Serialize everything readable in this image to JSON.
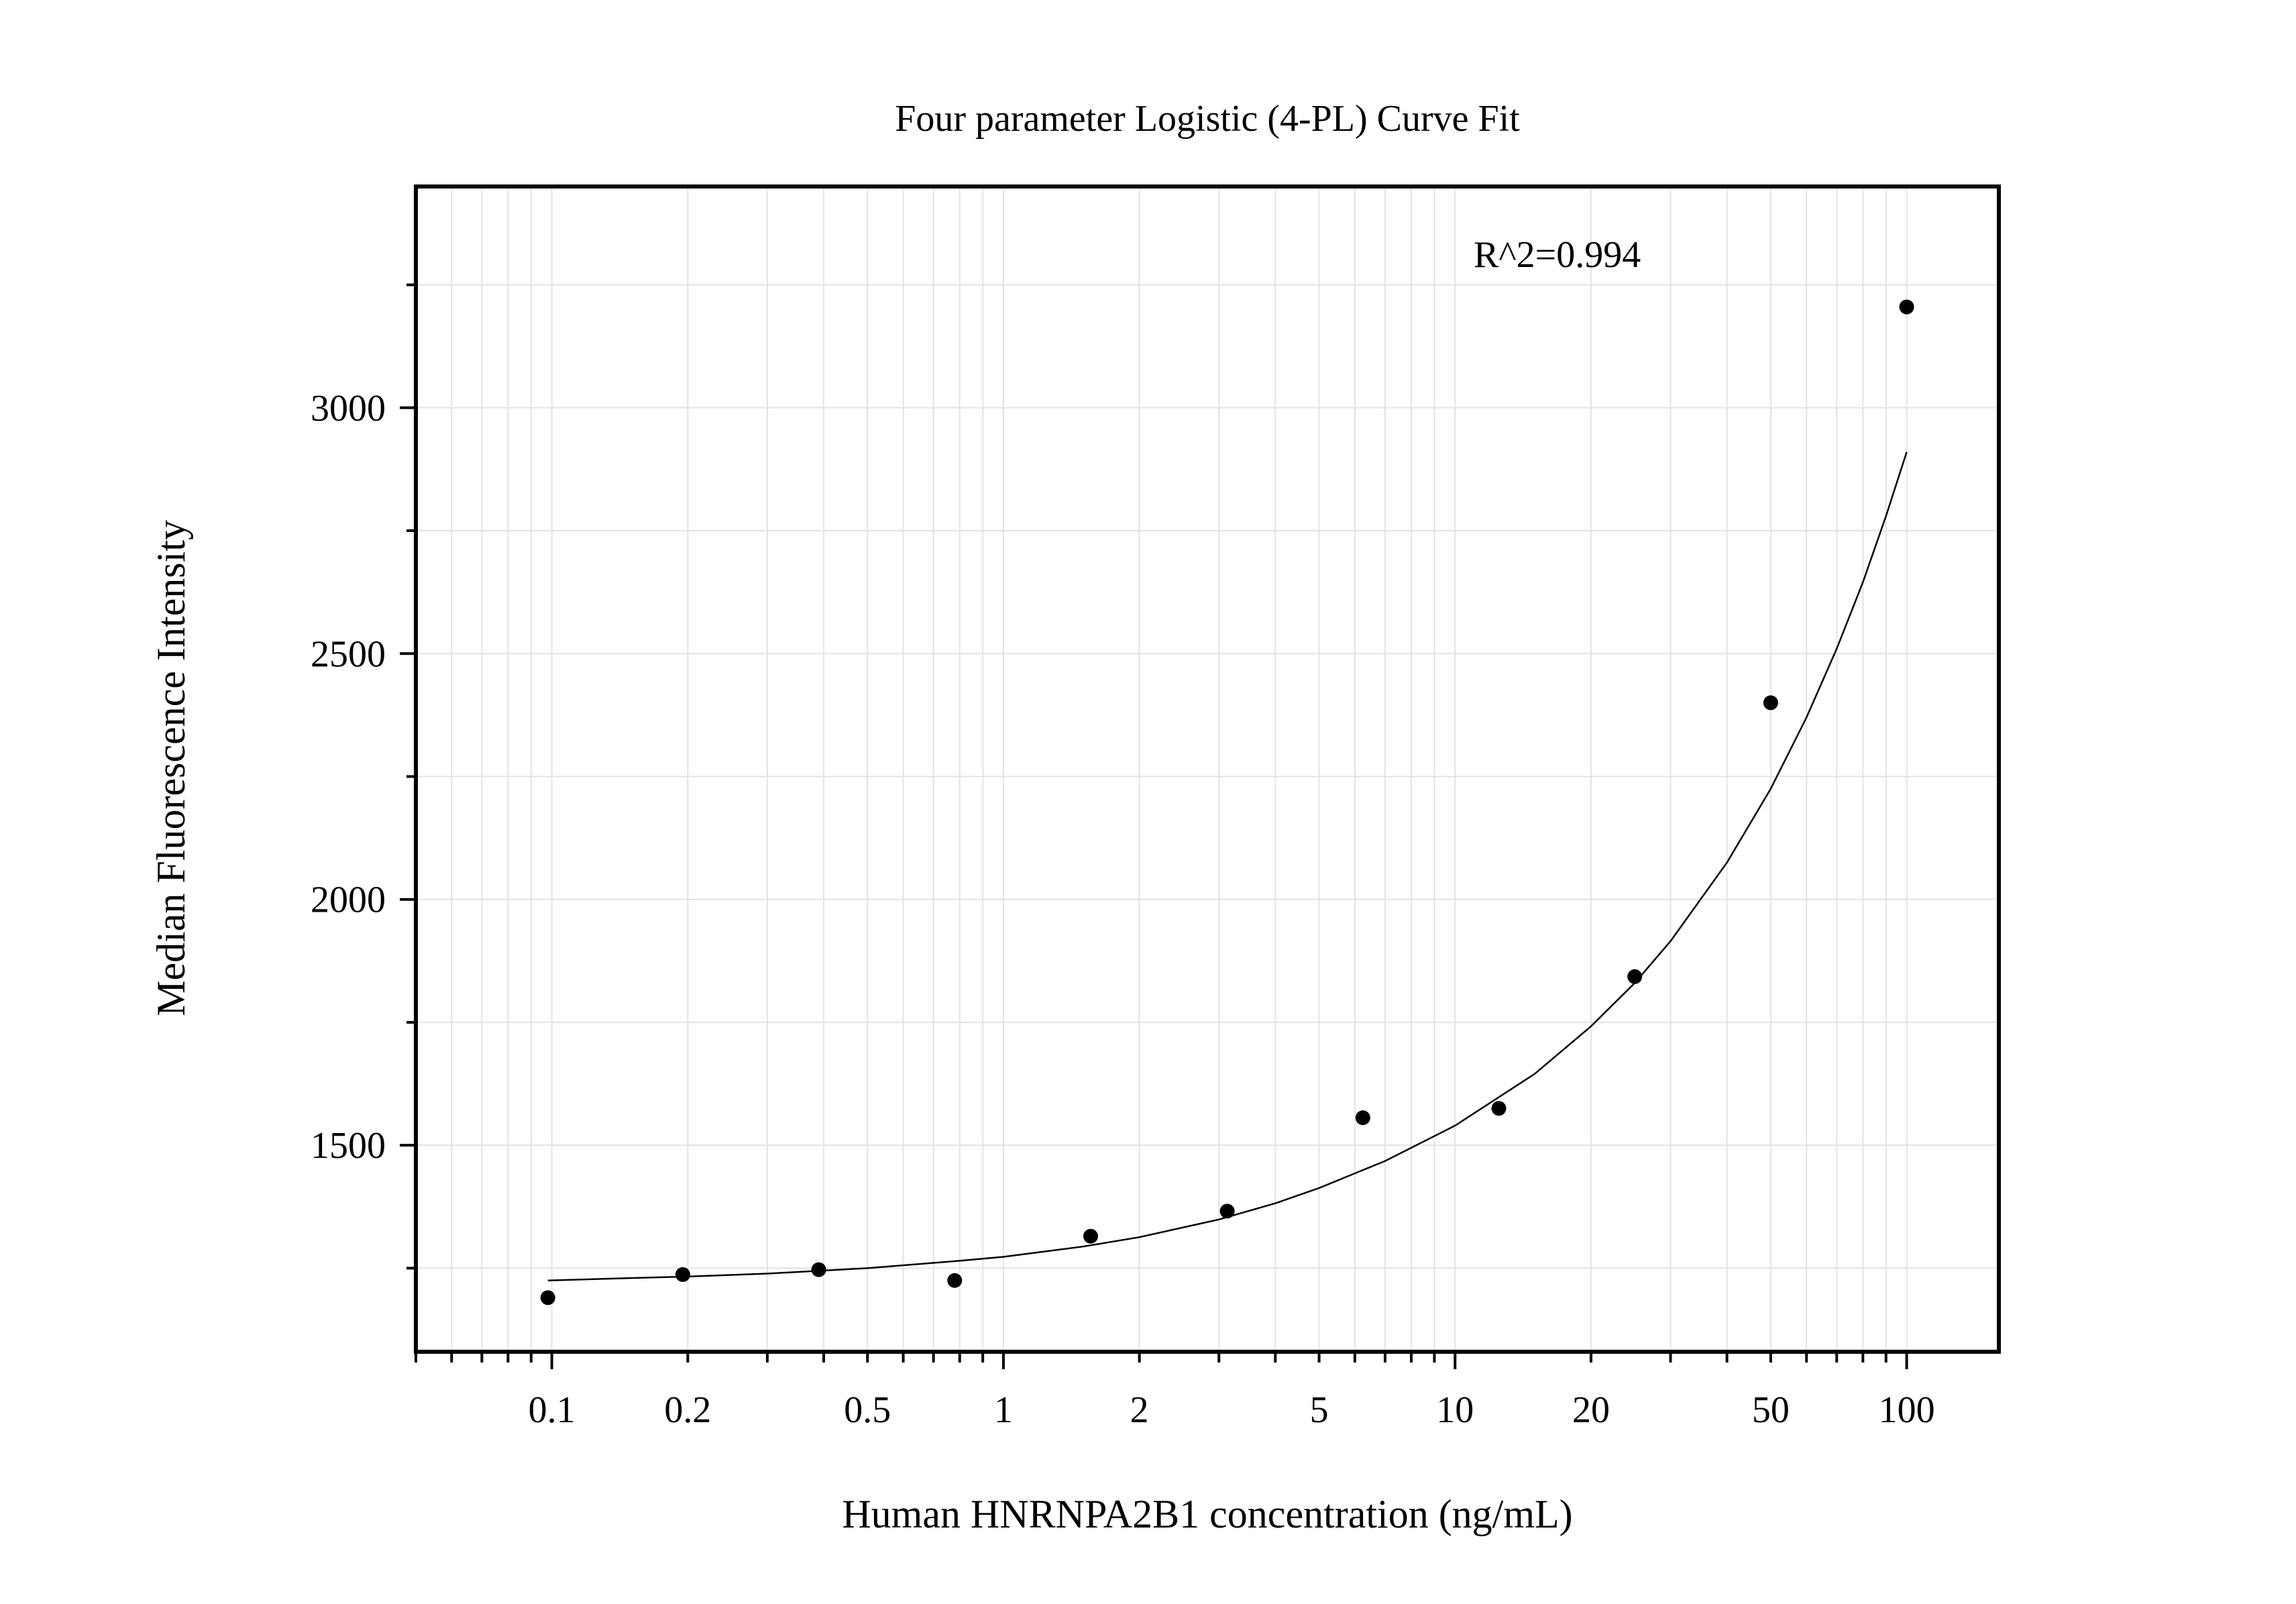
{
  "chart_data": {
    "type": "scatter",
    "title": "Four parameter Logistic (4-PL) Curve Fit",
    "xlabel": "Human HNRNPA2B1 concentration (ng/mL)",
    "ylabel": "Median Fluorescence Intensity",
    "x_scale": "log",
    "xlim": [
      0.05,
      160
    ],
    "ylim": [
      1080,
      3450
    ],
    "x_tick_labels": [
      "0.1",
      "0.2",
      "0.5",
      "1",
      "2",
      "5",
      "10",
      "20",
      "50",
      "100"
    ],
    "x_ticks": [
      0.1,
      0.2,
      0.5,
      1,
      2,
      5,
      10,
      20,
      50,
      100
    ],
    "y_ticks": [
      1500,
      2000,
      2500,
      3000
    ],
    "y_tick_labels": [
      "1500",
      "2000",
      "2500",
      "3000"
    ],
    "grid": true,
    "annotation": "R^2=0.994",
    "series": [
      {
        "points": {
          "x": [
            0.098,
            0.195,
            0.39,
            0.78,
            1.56,
            3.13,
            6.25,
            12.5,
            25,
            50,
            100
          ],
          "y": [
            1190,
            1237,
            1247,
            1225,
            1315,
            1366,
            1556,
            1575,
            1843,
            2400,
            3205
          ]
        },
        "fit_curve": {
          "type": "4-PL",
          "x": [
            0.098,
            0.15,
            0.2,
            0.3,
            0.5,
            0.8,
            1,
            1.5,
            2,
            3,
            4,
            5,
            7,
            10,
            15,
            20,
            25,
            30,
            40,
            50,
            60,
            70,
            80,
            90,
            100
          ],
          "y": [
            1225,
            1230,
            1233,
            1239,
            1250,
            1265,
            1273,
            1294,
            1313,
            1349,
            1382,
            1413,
            1468,
            1540,
            1645,
            1742,
            1830,
            1915,
            2075,
            2225,
            2370,
            2510,
            2645,
            2780,
            2910
          ]
        }
      }
    ],
    "colors": {
      "points": "#000000",
      "curve": "#000000",
      "grid": "#e3e3e3",
      "frame": "#000000"
    }
  }
}
